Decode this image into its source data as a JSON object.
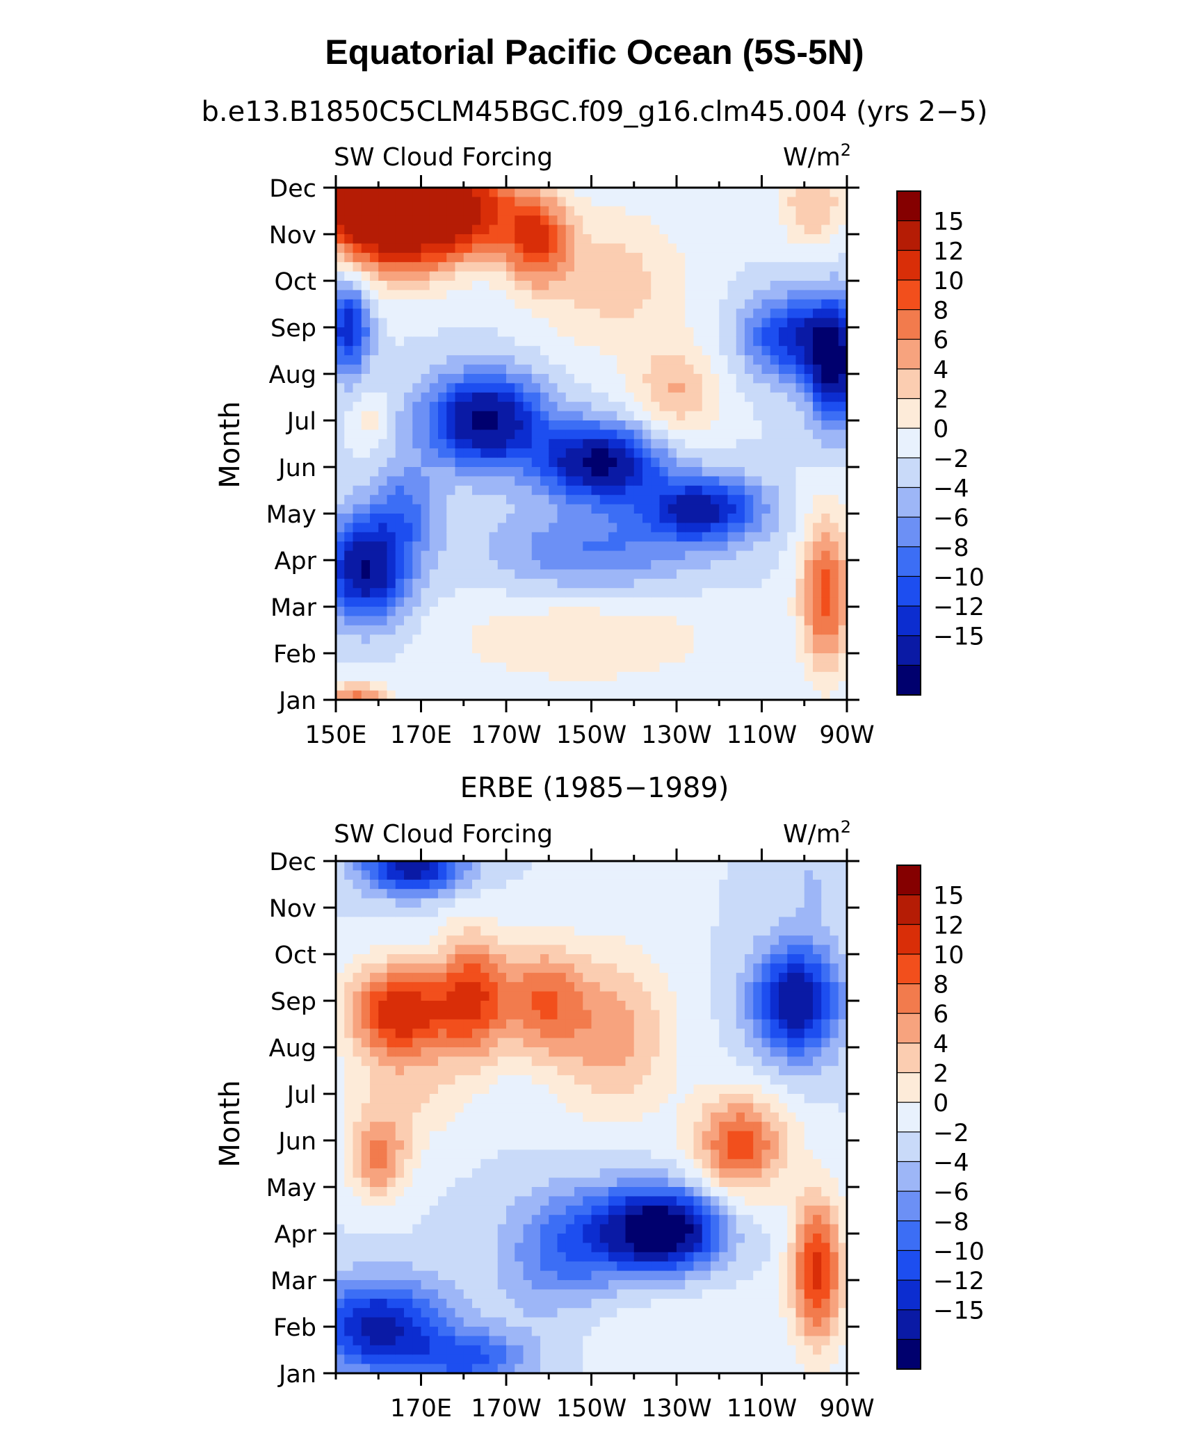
{
  "figure": {
    "title": "Equatorial Pacific Ocean (5S-5N)"
  },
  "chart_data": [
    {
      "type": "heatmap",
      "subtitle": "b.e13.B1850C5CLM45BGC.f09_g16.clm45.004 (yrs 2-5)",
      "left_label": "SW Cloud Forcing",
      "right_label": "W/m",
      "right_label_sup": "2",
      "ylabel": "Month",
      "y_tick_labels": [
        "Jan",
        "Feb",
        "Mar",
        "Apr",
        "May",
        "Jun",
        "Jul",
        "Aug",
        "Sep",
        "Oct",
        "Nov",
        "Dec"
      ],
      "x_tick_labels": [
        "150E",
        "170E",
        "170W",
        "150W",
        "130W",
        "110W",
        "90W"
      ],
      "x_tick_lon": [
        150,
        170,
        190,
        210,
        230,
        250,
        270
      ],
      "xlim_lon": [
        150,
        270
      ],
      "colorbar_labels": [
        "15",
        "12",
        "10",
        "8",
        "6",
        "4",
        "2",
        "0",
        "-2",
        "-4",
        "-6",
        "-8",
        "-10",
        "-12",
        "-15"
      ],
      "features": [
        {
          "lon": 165,
          "month": 10.3,
          "value": 17,
          "radius_lon": 14,
          "radius_month": 1.2
        },
        {
          "lon": 180,
          "month": 10.6,
          "value": 14,
          "radius_lon": 12,
          "radius_month": 1.0
        },
        {
          "lon": 155,
          "month": 10.8,
          "value": 15,
          "radius_lon": 9,
          "radius_month": 1.0
        },
        {
          "lon": 197,
          "month": 9.9,
          "value": 11,
          "radius_lon": 8,
          "radius_month": 1.0
        },
        {
          "lon": 215,
          "month": 9.0,
          "value": 5,
          "radius_lon": 18,
          "radius_month": 1.6
        },
        {
          "lon": 230,
          "month": 6.6,
          "value": 6,
          "radius_lon": 10,
          "radius_month": 1.0
        },
        {
          "lon": 262,
          "month": 10.7,
          "value": 6,
          "radius_lon": 8,
          "radius_month": 1.0
        },
        {
          "lon": 185,
          "month": 6.0,
          "value": -16,
          "radius_lon": 14,
          "radius_month": 1.0
        },
        {
          "lon": 212,
          "month": 5.1,
          "value": -16,
          "radius_lon": 14,
          "radius_month": 0.8
        },
        {
          "lon": 236,
          "month": 4.1,
          "value": -13,
          "radius_lon": 14,
          "radius_month": 0.7
        },
        {
          "lon": 166,
          "month": 4.1,
          "value": -6,
          "radius_lon": 8,
          "radius_month": 1.0
        },
        {
          "lon": 153,
          "month": 8.0,
          "value": -12,
          "radius_lon": 5,
          "radius_month": 1.0
        },
        {
          "lon": 257,
          "month": 7.8,
          "value": -11,
          "radius_lon": 11,
          "radius_month": 0.9
        },
        {
          "lon": 267,
          "month": 7.2,
          "value": -15,
          "radius_lon": 6,
          "radius_month": 1.3
        },
        {
          "lon": 157,
          "month": 2.8,
          "value": -15,
          "radius_lon": 10,
          "radius_month": 1.1
        },
        {
          "lon": 210,
          "month": 3.2,
          "value": -6,
          "radius_lon": 24,
          "radius_month": 0.9
        },
        {
          "lon": 208,
          "month": 1.3,
          "value": 4,
          "radius_lon": 32,
          "radius_month": 1.0
        },
        {
          "lon": 265,
          "month": 2.3,
          "value": 11,
          "radius_lon": 6,
          "radius_month": 1.7
        },
        {
          "lon": 158,
          "month": 6.0,
          "value": 3,
          "radius_lon": 4,
          "radius_month": 0.6
        },
        {
          "lon": 155,
          "month": 0.0,
          "value": 9,
          "radius_lon": 7,
          "radius_month": 0.4
        }
      ]
    },
    {
      "type": "heatmap",
      "subtitle": "ERBE (1985-1989)",
      "left_label": "SW Cloud Forcing",
      "right_label": "W/m",
      "right_label_sup": "2",
      "ylabel": "Month",
      "y_tick_labels": [
        "Jan",
        "Feb",
        "Mar",
        "Apr",
        "May",
        "Jun",
        "Jul",
        "Aug",
        "Sep",
        "Oct",
        "Nov",
        "Dec"
      ],
      "x_tick_labels": [
        "170E",
        "170W",
        "150W",
        "130W",
        "110W",
        "90W"
      ],
      "x_tick_lon": [
        170,
        190,
        210,
        230,
        250,
        270
      ],
      "xlim_lon": [
        150,
        270
      ],
      "colorbar_labels": [
        "15",
        "12",
        "10",
        "8",
        "6",
        "4",
        "2",
        "0",
        "-2",
        "-4",
        "-6",
        "-8",
        "-10",
        "-12",
        "-15"
      ],
      "features": [
        {
          "lon": 168,
          "month": 10.9,
          "value": -14,
          "radius_lon": 12,
          "radius_month": 0.6
        },
        {
          "lon": 165,
          "month": 7.8,
          "value": 14,
          "radius_lon": 12,
          "radius_month": 1.0
        },
        {
          "lon": 182,
          "month": 8.1,
          "value": 11,
          "radius_lon": 8,
          "radius_month": 1.4
        },
        {
          "lon": 198,
          "month": 8.0,
          "value": 9,
          "radius_lon": 10,
          "radius_month": 1.2
        },
        {
          "lon": 215,
          "month": 7.3,
          "value": 7,
          "radius_lon": 14,
          "radius_month": 1.8
        },
        {
          "lon": 160,
          "month": 4.6,
          "value": 8,
          "radius_lon": 7,
          "radius_month": 0.9
        },
        {
          "lon": 166,
          "month": 6.0,
          "value": 4,
          "radius_lon": 14,
          "radius_month": 1.2
        },
        {
          "lon": 245,
          "month": 4.9,
          "value": 11,
          "radius_lon": 11,
          "radius_month": 1.1
        },
        {
          "lon": 263,
          "month": 2.2,
          "value": 13,
          "radius_lon": 6,
          "radius_month": 1.6
        },
        {
          "lon": 258,
          "month": 8.0,
          "value": -15,
          "radius_lon": 10,
          "radius_month": 1.2
        },
        {
          "lon": 214,
          "month": 3.0,
          "value": -9,
          "radius_lon": 20,
          "radius_month": 1.1
        },
        {
          "lon": 228,
          "month": 3.1,
          "value": -14,
          "radius_lon": 12,
          "radius_month": 0.8
        },
        {
          "lon": 160,
          "month": 1.0,
          "value": -13,
          "radius_lon": 16,
          "radius_month": 1.0
        },
        {
          "lon": 182,
          "month": 0.3,
          "value": -8,
          "radius_lon": 14,
          "radius_month": 0.6
        },
        {
          "lon": 200,
          "month": 2.0,
          "value": -3,
          "radius_lon": 12,
          "radius_month": 1.0
        },
        {
          "lon": 230,
          "month": 1.0,
          "value": 2,
          "radius_lon": 22,
          "radius_month": 1.0
        },
        {
          "lon": 262,
          "month": 10.6,
          "value": -2,
          "radius_lon": 6,
          "radius_month": 1.0
        }
      ]
    }
  ],
  "colorbar_colors": [
    "#00006e",
    "#0a1aa5",
    "#0c2dd0",
    "#1d4ef0",
    "#3c6ef5",
    "#6c90f5",
    "#9db6f7",
    "#c9daf9",
    "#e8f1fd",
    "#fdebd9",
    "#fbcdb1",
    "#f7a37e",
    "#f27b4d",
    "#f24f1c",
    "#d92e08",
    "#b51c05",
    "#850000"
  ],
  "colorbar_levels": [
    -15,
    -12,
    -10,
    -8,
    -6,
    -4,
    -2,
    0,
    2,
    4,
    6,
    8,
    10,
    12,
    15
  ]
}
